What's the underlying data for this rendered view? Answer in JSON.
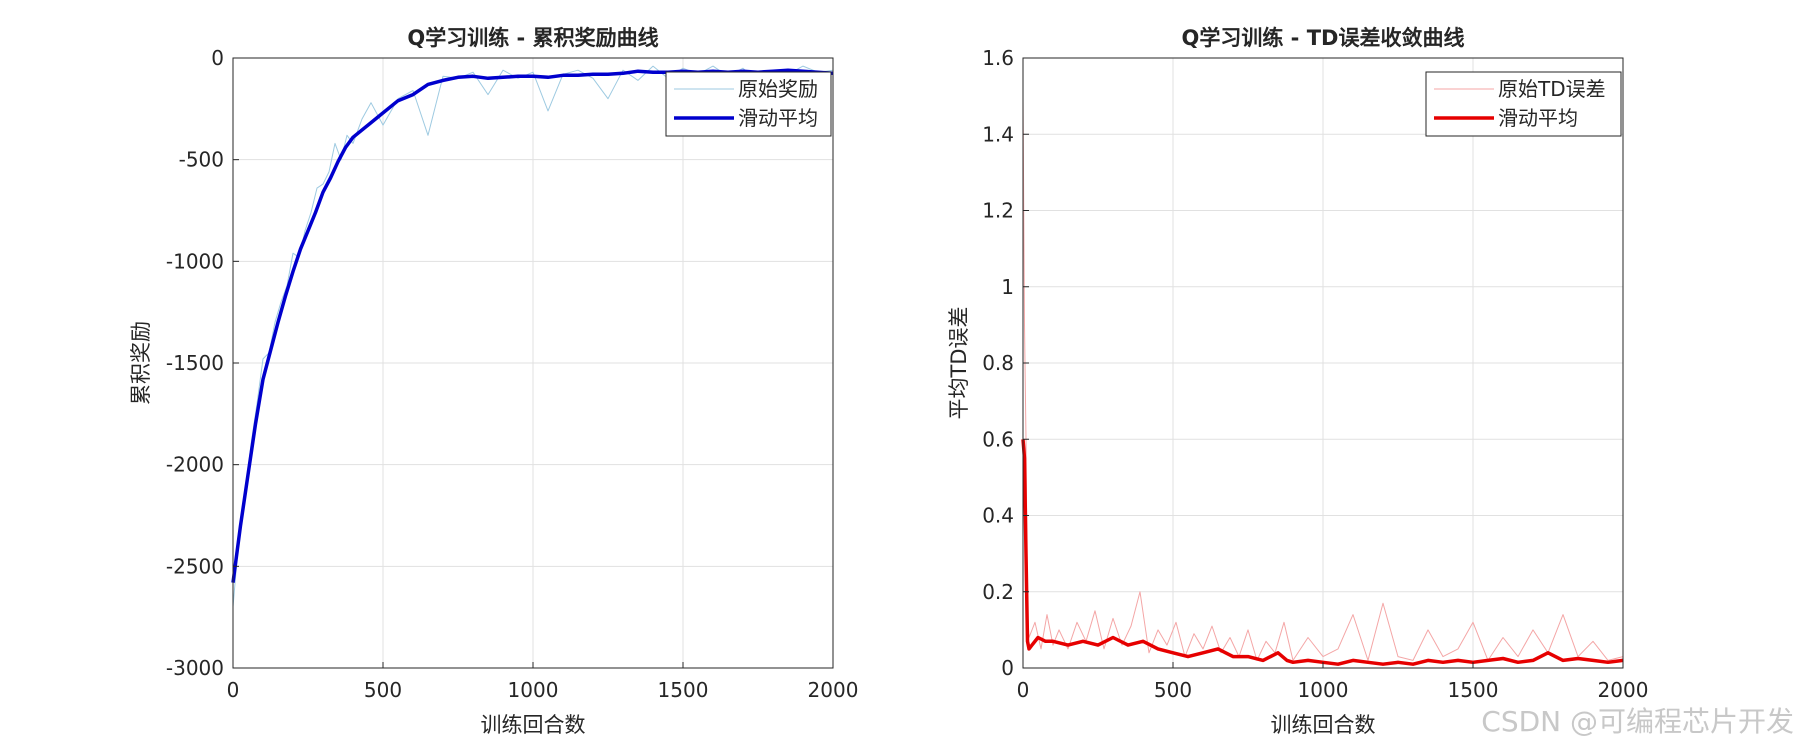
{
  "watermark": "CSDN @可编程芯片开发",
  "chart_data": [
    {
      "type": "line",
      "title": "Q学习训练 - 累积奖励曲线",
      "xlabel": "训练回合数",
      "ylabel": "累积奖励",
      "xlim": [
        0,
        2000
      ],
      "ylim": [
        -3000,
        0
      ],
      "xticks": [
        0,
        500,
        1000,
        1500,
        2000
      ],
      "yticks": [
        -3000,
        -2500,
        -2000,
        -1500,
        -1000,
        -500,
        0
      ],
      "grid": true,
      "legend_position": "top-right",
      "series": [
        {
          "name": "原始奖励",
          "color": "#9ecae1",
          "x": [
            0,
            20,
            40,
            60,
            80,
            100,
            120,
            140,
            160,
            180,
            200,
            220,
            240,
            260,
            280,
            300,
            320,
            340,
            360,
            380,
            400,
            430,
            460,
            500,
            550,
            600,
            650,
            700,
            750,
            800,
            850,
            900,
            950,
            1000,
            1050,
            1100,
            1150,
            1200,
            1250,
            1300,
            1350,
            1400,
            1450,
            1500,
            1550,
            1600,
            1650,
            1700,
            1750,
            1800,
            1850,
            1900,
            1950,
            2000
          ],
          "values": [
            -2700,
            -2350,
            -2150,
            -1900,
            -1700,
            -1480,
            -1450,
            -1300,
            -1200,
            -1120,
            -960,
            -980,
            -850,
            -760,
            -640,
            -620,
            -560,
            -420,
            -500,
            -380,
            -420,
            -300,
            -220,
            -330,
            -200,
            -160,
            -380,
            -90,
            -100,
            -70,
            -180,
            -60,
            -100,
            -70,
            -260,
            -80,
            -60,
            -100,
            -200,
            -60,
            -110,
            -40,
            -100,
            -50,
            -80,
            -40,
            -90,
            -50,
            -120,
            -60,
            -80,
            -40,
            -70,
            -60
          ]
        },
        {
          "name": "滑动平均",
          "color": "#0000cd",
          "x": [
            0,
            25,
            50,
            75,
            100,
            125,
            150,
            175,
            200,
            225,
            250,
            275,
            300,
            325,
            350,
            375,
            400,
            450,
            500,
            550,
            600,
            650,
            700,
            750,
            800,
            850,
            900,
            950,
            1000,
            1050,
            1100,
            1150,
            1200,
            1250,
            1300,
            1350,
            1400,
            1450,
            1500,
            1550,
            1600,
            1650,
            1700,
            1750,
            1800,
            1850,
            1900,
            1950,
            2000
          ],
          "values": [
            -2580,
            -2300,
            -2050,
            -1800,
            -1580,
            -1440,
            -1300,
            -1170,
            -1050,
            -940,
            -850,
            -760,
            -660,
            -590,
            -510,
            -440,
            -390,
            -330,
            -270,
            -210,
            -180,
            -130,
            -110,
            -95,
            -90,
            -100,
            -95,
            -90,
            -90,
            -95,
            -85,
            -85,
            -80,
            -80,
            -75,
            -65,
            -70,
            -70,
            -65,
            -70,
            -65,
            -70,
            -65,
            -70,
            -65,
            -60,
            -65,
            -70,
            -75
          ]
        }
      ]
    },
    {
      "type": "line",
      "title": "Q学习训练 - TD误差收敛曲线",
      "xlabel": "训练回合数",
      "ylabel": "平均TD误差",
      "xlim": [
        0,
        2000
      ],
      "ylim": [
        0,
        1.6
      ],
      "xticks": [
        0,
        500,
        1000,
        1500,
        2000
      ],
      "yticks": [
        0,
        0.2,
        0.4,
        0.6,
        0.8,
        1,
        1.2,
        1.4,
        1.6
      ],
      "grid": true,
      "legend_position": "top-right",
      "series": [
        {
          "name": "原始TD误差",
          "color": "#f4a6a6",
          "x": [
            0,
            5,
            10,
            15,
            20,
            40,
            60,
            80,
            100,
            120,
            150,
            180,
            210,
            240,
            270,
            300,
            330,
            360,
            390,
            420,
            450,
            480,
            510,
            540,
            570,
            600,
            630,
            660,
            690,
            720,
            750,
            780,
            810,
            840,
            870,
            900,
            950,
            1000,
            1050,
            1100,
            1150,
            1200,
            1250,
            1300,
            1350,
            1400,
            1450,
            1500,
            1550,
            1600,
            1650,
            1700,
            1750,
            1800,
            1850,
            1900,
            1950,
            2000
          ],
          "values": [
            1.5,
            0.9,
            0.6,
            0.15,
            0.08,
            0.12,
            0.05,
            0.14,
            0.06,
            0.1,
            0.05,
            0.12,
            0.07,
            0.15,
            0.05,
            0.13,
            0.06,
            0.11,
            0.2,
            0.04,
            0.1,
            0.06,
            0.12,
            0.03,
            0.09,
            0.05,
            0.11,
            0.04,
            0.08,
            0.03,
            0.1,
            0.02,
            0.07,
            0.04,
            0.12,
            0.02,
            0.08,
            0.03,
            0.05,
            0.14,
            0.02,
            0.17,
            0.03,
            0.02,
            0.1,
            0.03,
            0.05,
            0.12,
            0.02,
            0.08,
            0.03,
            0.1,
            0.04,
            0.14,
            0.03,
            0.07,
            0.02,
            0.03
          ]
        },
        {
          "name": "滑动平均",
          "color": "#e60000",
          "x": [
            0,
            5,
            10,
            15,
            20,
            30,
            50,
            75,
            100,
            150,
            200,
            250,
            300,
            350,
            400,
            450,
            500,
            550,
            600,
            650,
            700,
            750,
            800,
            850,
            880,
            900,
            950,
            1000,
            1050,
            1100,
            1150,
            1200,
            1250,
            1300,
            1350,
            1400,
            1450,
            1500,
            1550,
            1600,
            1650,
            1700,
            1750,
            1800,
            1850,
            1900,
            1950,
            2000
          ],
          "values": [
            0.6,
            0.55,
            0.3,
            0.07,
            0.05,
            0.06,
            0.08,
            0.07,
            0.07,
            0.06,
            0.07,
            0.06,
            0.08,
            0.06,
            0.07,
            0.05,
            0.04,
            0.03,
            0.04,
            0.05,
            0.03,
            0.03,
            0.02,
            0.04,
            0.02,
            0.015,
            0.02,
            0.015,
            0.01,
            0.02,
            0.015,
            0.01,
            0.015,
            0.01,
            0.02,
            0.015,
            0.02,
            0.015,
            0.02,
            0.025,
            0.015,
            0.02,
            0.04,
            0.02,
            0.025,
            0.02,
            0.015,
            0.02
          ]
        }
      ]
    }
  ]
}
